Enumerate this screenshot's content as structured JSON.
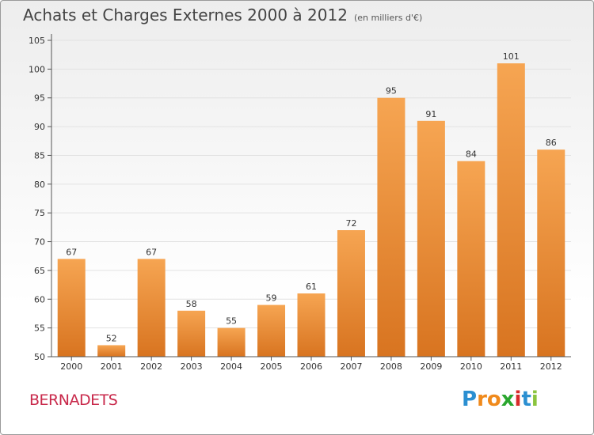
{
  "header": {
    "title": "Achats et Charges Externes 2000 à 2012",
    "unit": "(en milliers d'€)"
  },
  "footer": {
    "commune": "BERNADETS",
    "logo": "Proxiti",
    "logo_letters": [
      "P",
      "r",
      "o",
      "x",
      "i",
      "t",
      "i"
    ],
    "logo_colors": [
      "#2b8fd1",
      "#f08a1c",
      "#f08a1c",
      "#2aa62e",
      "#d82a2a",
      "#2b8fd1",
      "#8bc43f"
    ]
  },
  "colors": {
    "bar_top": "#f6a552",
    "bar_bottom": "#d87420",
    "axis": "#555555",
    "grid": "#e2e2e2",
    "commune": "#c8284a"
  },
  "chart_data": {
    "type": "bar",
    "title": "Achats et Charges Externes 2000 à 2012",
    "subtitle": "(en milliers d'€)",
    "xlabel": "",
    "ylabel": "",
    "categories": [
      "2000",
      "2001",
      "2002",
      "2003",
      "2004",
      "2005",
      "2006",
      "2007",
      "2008",
      "2009",
      "2010",
      "2011",
      "2012"
    ],
    "values": [
      67,
      52,
      67,
      58,
      55,
      59,
      61,
      72,
      95,
      91,
      84,
      101,
      86
    ],
    "ylim": [
      50,
      105
    ],
    "yticks": [
      50,
      55,
      60,
      65,
      70,
      75,
      80,
      85,
      90,
      95,
      100,
      105
    ],
    "grid": true,
    "legend": "none"
  }
}
